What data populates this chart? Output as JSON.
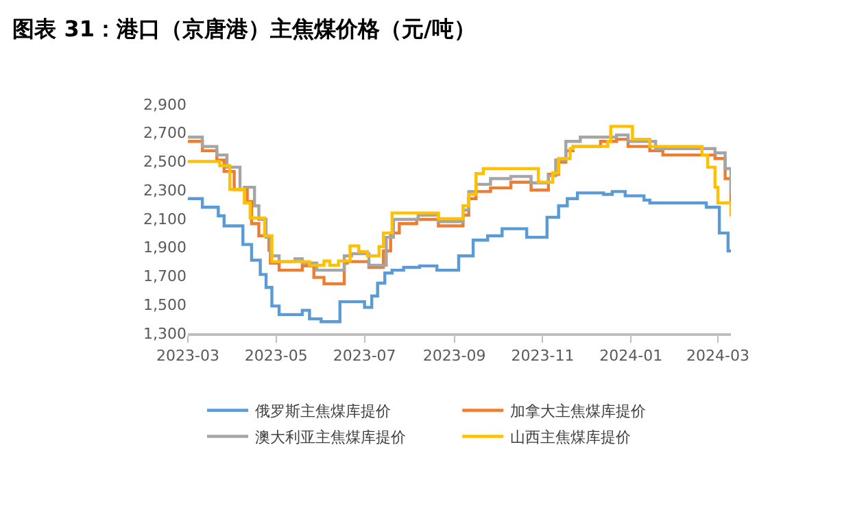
{
  "chart_data": {
    "type": "step",
    "title": "图表 31：港口（京唐港）主焦煤价格（元/吨）",
    "xlim": [
      "2023-03-01",
      "2024-03-10"
    ],
    "xticks": [
      "2023-03",
      "2023-05",
      "2023-07",
      "2023-09",
      "2023-11",
      "2024-01",
      "2024-03"
    ],
    "ylim": [
      1300,
      2900
    ],
    "yticks": [
      {
        "value": 1300,
        "label": "1,300"
      },
      {
        "value": 1500,
        "label": "1,500"
      },
      {
        "value": 1700,
        "label": "1,700"
      },
      {
        "value": 1900,
        "label": "1,900"
      },
      {
        "value": 2100,
        "label": "2,100"
      },
      {
        "value": 2300,
        "label": "2,300"
      },
      {
        "value": 2500,
        "label": "2,500"
      },
      {
        "value": 2700,
        "label": "2,700"
      },
      {
        "value": 2900,
        "label": "2,900"
      }
    ],
    "legend": "bottom",
    "marker": "none",
    "line_style": "solid",
    "series": [
      {
        "name": "俄罗斯主焦煤库提价",
        "color": "#5b9bd5",
        "x": [
          "2023-03-01",
          "2023-03-11",
          "2023-03-22",
          "2023-03-26",
          "2023-04-08",
          "2023-04-14",
          "2023-04-20",
          "2023-04-24",
          "2023-04-28",
          "2023-05-03",
          "2023-05-19",
          "2023-05-24",
          "2023-06-01",
          "2023-06-14",
          "2023-07-01",
          "2023-07-06",
          "2023-07-10",
          "2023-07-15",
          "2023-07-20",
          "2023-07-28",
          "2023-08-08",
          "2023-08-20",
          "2023-09-04",
          "2023-09-14",
          "2023-09-24",
          "2023-10-04",
          "2023-10-21",
          "2023-11-04",
          "2023-11-12",
          "2023-11-18",
          "2023-11-25",
          "2023-12-13",
          "2023-12-19",
          "2023-12-28",
          "2024-01-10",
          "2024-01-14",
          "2024-02-22",
          "2024-03-02",
          "2024-03-08",
          "2024-03-10"
        ],
        "values": [
          2240,
          2180,
          2120,
          2050,
          1920,
          1810,
          1710,
          1620,
          1490,
          1430,
          1460,
          1400,
          1380,
          1520,
          1480,
          1560,
          1650,
          1720,
          1740,
          1760,
          1770,
          1740,
          1840,
          1950,
          1980,
          2030,
          1970,
          2110,
          2190,
          2240,
          2280,
          2270,
          2290,
          2260,
          2230,
          2210,
          2180,
          2000,
          1875,
          1875
        ]
      },
      {
        "name": "加拿大主焦煤库提价",
        "color": "#ed7d31",
        "x": [
          "2023-03-01",
          "2023-03-11",
          "2023-03-21",
          "2023-03-26",
          "2023-04-02",
          "2023-04-11",
          "2023-04-14",
          "2023-04-19",
          "2023-04-26",
          "2023-04-27",
          "2023-05-03",
          "2023-05-19",
          "2023-05-27",
          "2023-06-03",
          "2023-06-17",
          "2023-06-19",
          "2023-07-04",
          "2023-07-14",
          "2023-07-19",
          "2023-07-25",
          "2023-08-06",
          "2023-08-21",
          "2023-09-07",
          "2023-09-11",
          "2023-09-16",
          "2023-09-26",
          "2023-10-10",
          "2023-10-24",
          "2023-11-05",
          "2023-11-12",
          "2023-11-17",
          "2023-11-22",
          "2023-12-11",
          "2023-12-22",
          "2023-12-30",
          "2024-01-14",
          "2024-01-23",
          "2024-02-28",
          "2024-03-06",
          "2024-03-10"
        ],
        "values": [
          2640,
          2575,
          2510,
          2430,
          2305,
          2220,
          2065,
          1980,
          1880,
          1790,
          1740,
          1770,
          1690,
          1645,
          1790,
          1800,
          1760,
          1875,
          2000,
          2065,
          2095,
          2050,
          2125,
          2240,
          2290,
          2315,
          2355,
          2300,
          2410,
          2495,
          2575,
          2605,
          2640,
          2655,
          2605,
          2575,
          2545,
          2520,
          2380,
          2210
        ]
      },
      {
        "name": "澳大利亚主焦煤库提价",
        "color": "#a5a5a5",
        "x": [
          "2023-03-01",
          "2023-03-11",
          "2023-03-21",
          "2023-03-28",
          "2023-04-06",
          "2023-04-09",
          "2023-04-16",
          "2023-04-19",
          "2023-04-24",
          "2023-04-27",
          "2023-05-03",
          "2023-05-14",
          "2023-05-19",
          "2023-05-29",
          "2023-06-17",
          "2023-06-22",
          "2023-07-04",
          "2023-07-16",
          "2023-07-21",
          "2023-08-07",
          "2023-08-21",
          "2023-09-07",
          "2023-09-11",
          "2023-09-16",
          "2023-09-26",
          "2023-10-10",
          "2023-10-24",
          "2023-11-05",
          "2023-11-10",
          "2023-11-17",
          "2023-11-27",
          "2023-12-22",
          "2023-12-30",
          "2024-01-18",
          "2024-02-28",
          "2024-03-06",
          "2024-03-10"
        ],
        "values": [
          2670,
          2605,
          2545,
          2460,
          2305,
          2320,
          2190,
          2095,
          1970,
          1840,
          1800,
          1820,
          1790,
          1740,
          1840,
          1855,
          1775,
          1970,
          2095,
          2125,
          2080,
          2160,
          2290,
          2340,
          2380,
          2395,
          2350,
          2400,
          2510,
          2640,
          2670,
          2685,
          2640,
          2590,
          2560,
          2450,
          2270
        ]
      },
      {
        "name": "山西主焦煤库提价",
        "color": "#ffc000",
        "x": [
          "2023-03-01",
          "2023-03-23",
          "2023-03-30",
          "2023-04-09",
          "2023-04-13",
          "2023-04-23",
          "2023-04-28",
          "2023-05-24",
          "2023-06-03",
          "2023-06-07",
          "2023-06-13",
          "2023-06-21",
          "2023-06-27",
          "2023-07-03",
          "2023-07-11",
          "2023-07-14",
          "2023-07-20",
          "2023-08-21",
          "2023-09-07",
          "2023-09-11",
          "2023-09-16",
          "2023-09-21",
          "2023-10-29",
          "2023-11-08",
          "2023-11-12",
          "2023-11-20",
          "2023-11-22",
          "2023-12-16",
          "2023-12-18",
          "2024-01-02",
          "2024-01-14",
          "2024-02-19",
          "2024-02-23",
          "2024-02-28",
          "2024-03-01",
          "2024-03-10"
        ],
        "values": [
          2500,
          2470,
          2305,
          2210,
          2105,
          1980,
          1800,
          1775,
          1805,
          1775,
          1805,
          1910,
          1870,
          1840,
          1905,
          2000,
          2140,
          2100,
          2190,
          2270,
          2415,
          2450,
          2355,
          2420,
          2520,
          2590,
          2605,
          2640,
          2745,
          2655,
          2605,
          2545,
          2460,
          2320,
          2210,
          2115
        ]
      }
    ]
  }
}
